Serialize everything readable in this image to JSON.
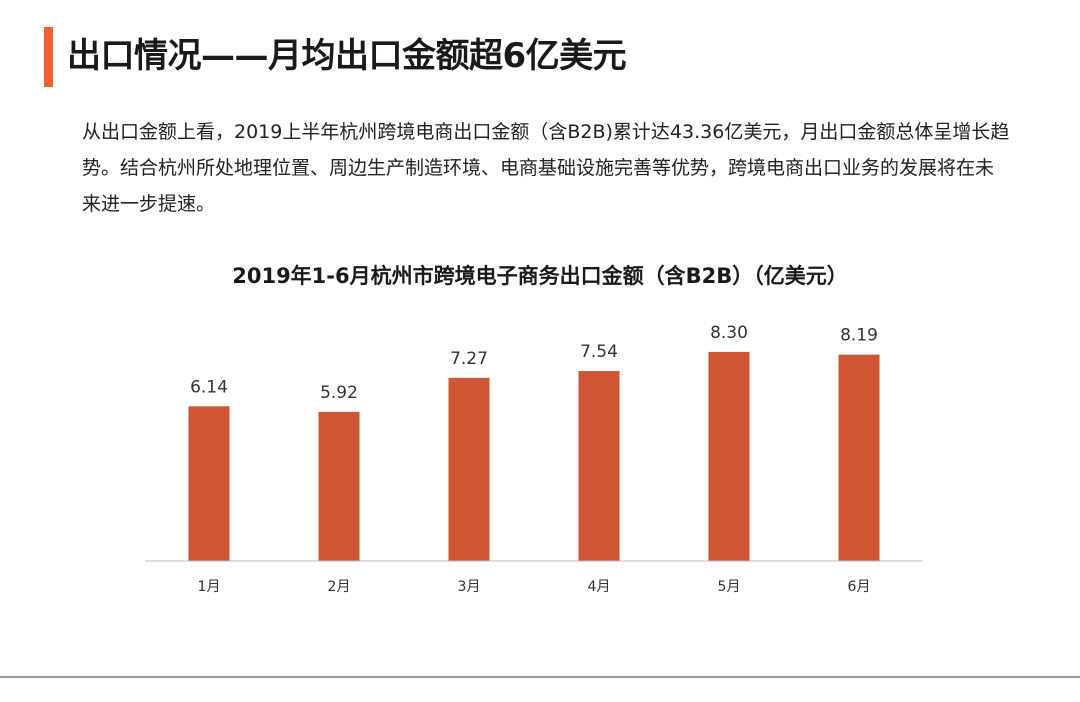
{
  "slide": {
    "title": "出口情况——月均出口金额超6亿美元",
    "intro": "从出口金额上看，2019上半年杭州跨境电商出口金额（含B2B)累计达43.36亿美元，月出口金额总体呈增长趋势。结合杭州所处地理位置、周边生产制造环境、电商基础设施完善等优势，跨境电商出口业务的发展将在未来进一步提速。"
  },
  "colors": {
    "accent": "#f0612d",
    "bar": "#cf5535",
    "axis": "#bfbfbf"
  },
  "chart_data": {
    "type": "bar",
    "title": "2019年1-6月杭州市跨境电子商务出口金额（含B2B）（亿美元）",
    "categories": [
      "1月",
      "2月",
      "3月",
      "4月",
      "5月",
      "6月"
    ],
    "values": [
      6.14,
      5.92,
      7.27,
      7.54,
      8.3,
      8.19
    ],
    "value_labels": [
      "6.14",
      "5.92",
      "7.27",
      "7.54",
      "8.30",
      "8.19"
    ],
    "xlabel": "",
    "ylabel": "",
    "ylim": [
      0,
      9.13
    ],
    "grid": false
  }
}
